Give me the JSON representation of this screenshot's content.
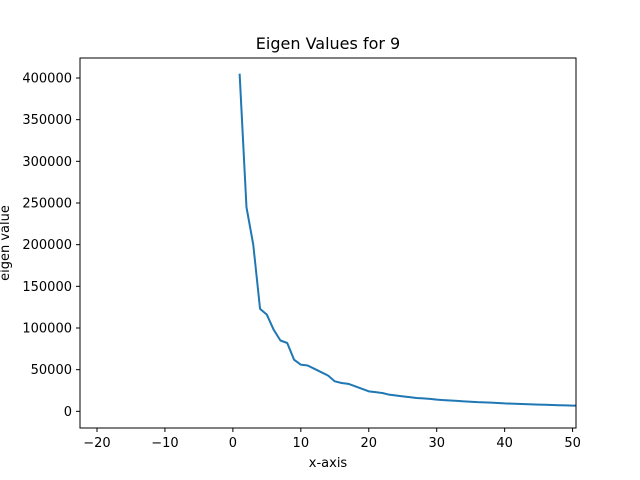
{
  "chart_data": {
    "type": "line",
    "title": "Eigen Values for 9",
    "xlabel": "x-axis",
    "ylabel": "eigen value",
    "xlim": [
      -22.5,
      50.5
    ],
    "ylim": [
      -20000,
      424000
    ],
    "xticks": [
      -20,
      -10,
      0,
      10,
      20,
      30,
      40,
      50
    ],
    "yticks": [
      0,
      50000,
      100000,
      150000,
      200000,
      250000,
      300000,
      350000,
      400000
    ],
    "grid": false,
    "series": [
      {
        "color": "#1f77b4",
        "x": [
          1,
          2,
          3,
          4,
          5,
          6,
          7,
          8,
          9,
          10,
          11,
          12,
          13,
          14,
          15,
          16,
          17,
          18,
          19,
          20,
          21,
          22,
          23,
          24,
          25,
          26,
          27,
          28,
          29,
          30,
          31,
          32,
          33,
          34,
          35,
          36,
          37,
          38,
          39,
          40,
          41,
          42,
          43,
          44,
          45,
          46,
          47,
          48,
          49,
          50,
          51
        ],
        "y": [
          404000,
          245000,
          200000,
          123000,
          116000,
          98000,
          85000,
          82000,
          62000,
          56000,
          55000,
          51000,
          47000,
          43000,
          36000,
          34000,
          33000,
          30000,
          27000,
          24000,
          23000,
          22000,
          20000,
          19000,
          18000,
          17000,
          16000,
          15500,
          15000,
          14000,
          13500,
          13000,
          12500,
          12000,
          11500,
          11000,
          10800,
          10500,
          10000,
          9500,
          9200,
          9000,
          8700,
          8400,
          8100,
          7900,
          7600,
          7300,
          7100,
          6900,
          6700
        ]
      }
    ]
  }
}
